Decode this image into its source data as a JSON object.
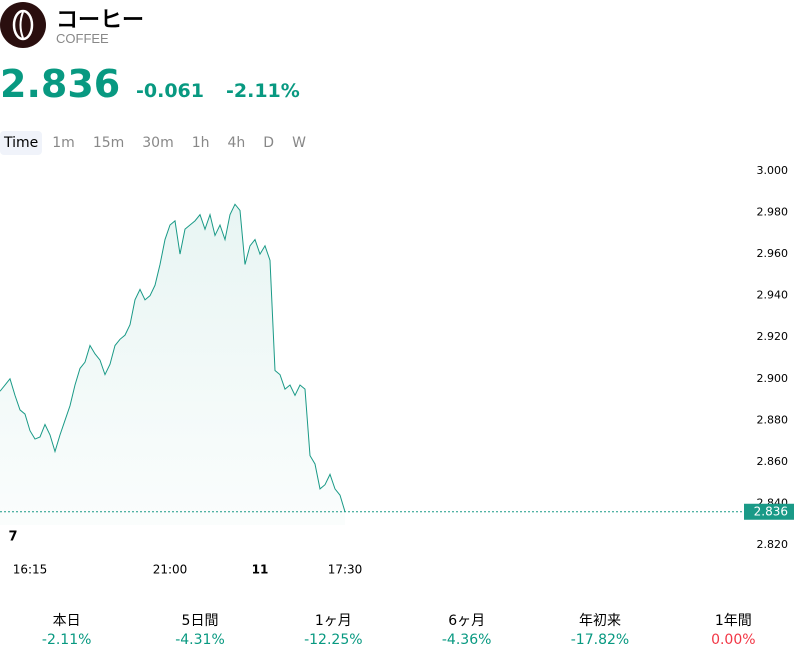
{
  "header": {
    "name": "コーヒー",
    "code": "COFFEE",
    "price": "2.836",
    "change": "-0.061",
    "change_percent": "-2.11%"
  },
  "timeframes": {
    "items": [
      "Time",
      "1m",
      "15m",
      "30m",
      "1h",
      "4h",
      "D",
      "W"
    ],
    "active": "Time"
  },
  "chart_data": {
    "type": "line",
    "categories": [
      null,
      null,
      null,
      null,
      null,
      null,
      "16:15",
      null,
      null,
      null,
      null,
      null,
      null,
      null,
      null,
      null,
      null,
      null,
      null,
      null,
      null,
      null,
      null,
      null,
      null,
      null,
      null,
      null,
      null,
      null,
      null,
      null,
      null,
      null,
      "21:00",
      null,
      null,
      null,
      null,
      null,
      null,
      null,
      null,
      null,
      null,
      null,
      null,
      null,
      null,
      null,
      null,
      null,
      "11",
      null,
      null,
      null,
      null,
      null,
      null,
      null,
      null,
      null,
      null,
      null,
      null,
      null,
      null,
      null,
      null,
      "17:30"
    ],
    "series": [
      {
        "name": "COFFEE",
        "color": "#1a9a87",
        "values": [
          2.894,
          2.897,
          2.9,
          2.892,
          2.885,
          2.883,
          2.875,
          2.871,
          2.872,
          2.878,
          2.873,
          2.865,
          2.873,
          2.88,
          2.887,
          2.897,
          2.905,
          2.908,
          2.916,
          2.912,
          2.909,
          2.902,
          2.907,
          2.916,
          2.919,
          2.921,
          2.926,
          2.938,
          2.943,
          2.938,
          2.94,
          2.945,
          2.955,
          2.967,
          2.974,
          2.976,
          2.96,
          2.972,
          2.974,
          2.976,
          2.979,
          2.972,
          2.979,
          2.969,
          2.974,
          2.967,
          2.979,
          2.984,
          2.981,
          2.955,
          2.964,
          2.967,
          2.96,
          2.964,
          2.957,
          2.904,
          2.902,
          2.895,
          2.897,
          2.892,
          2.897,
          2.895,
          2.863,
          2.859,
          2.847,
          2.849,
          2.854,
          2.847,
          2.844,
          2.836
        ]
      }
    ],
    "ylim": [
      2.82,
      3.0
    ],
    "yticks": [
      {
        "value": 2.82,
        "label": "2.820"
      },
      {
        "value": 2.84,
        "label": "2.840"
      },
      {
        "value": 2.86,
        "label": "2.860"
      },
      {
        "value": 2.88,
        "label": "2.880"
      },
      {
        "value": 2.9,
        "label": "2.900"
      },
      {
        "value": 2.92,
        "label": "2.920"
      },
      {
        "value": 2.94,
        "label": "2.940"
      },
      {
        "value": 2.96,
        "label": "2.960"
      },
      {
        "value": 2.98,
        "label": "2.980"
      },
      {
        "value": 3.0,
        "label": "3.000"
      }
    ]
  },
  "performance": [
    {
      "label": "本日",
      "value": "-2.11%",
      "color": "#089981"
    },
    {
      "label": "5日間",
      "value": "-4.31%",
      "color": "#089981"
    },
    {
      "label": "1ヶ月",
      "value": "-12.25%",
      "color": "#089981"
    },
    {
      "label": "6ヶ月",
      "value": "-4.36%",
      "color": "#089981"
    },
    {
      "label": "年初来",
      "value": "-17.82%",
      "color": "#089981"
    },
    {
      "label": "1年間",
      "value": "0.00%",
      "color": "#f23645"
    }
  ]
}
